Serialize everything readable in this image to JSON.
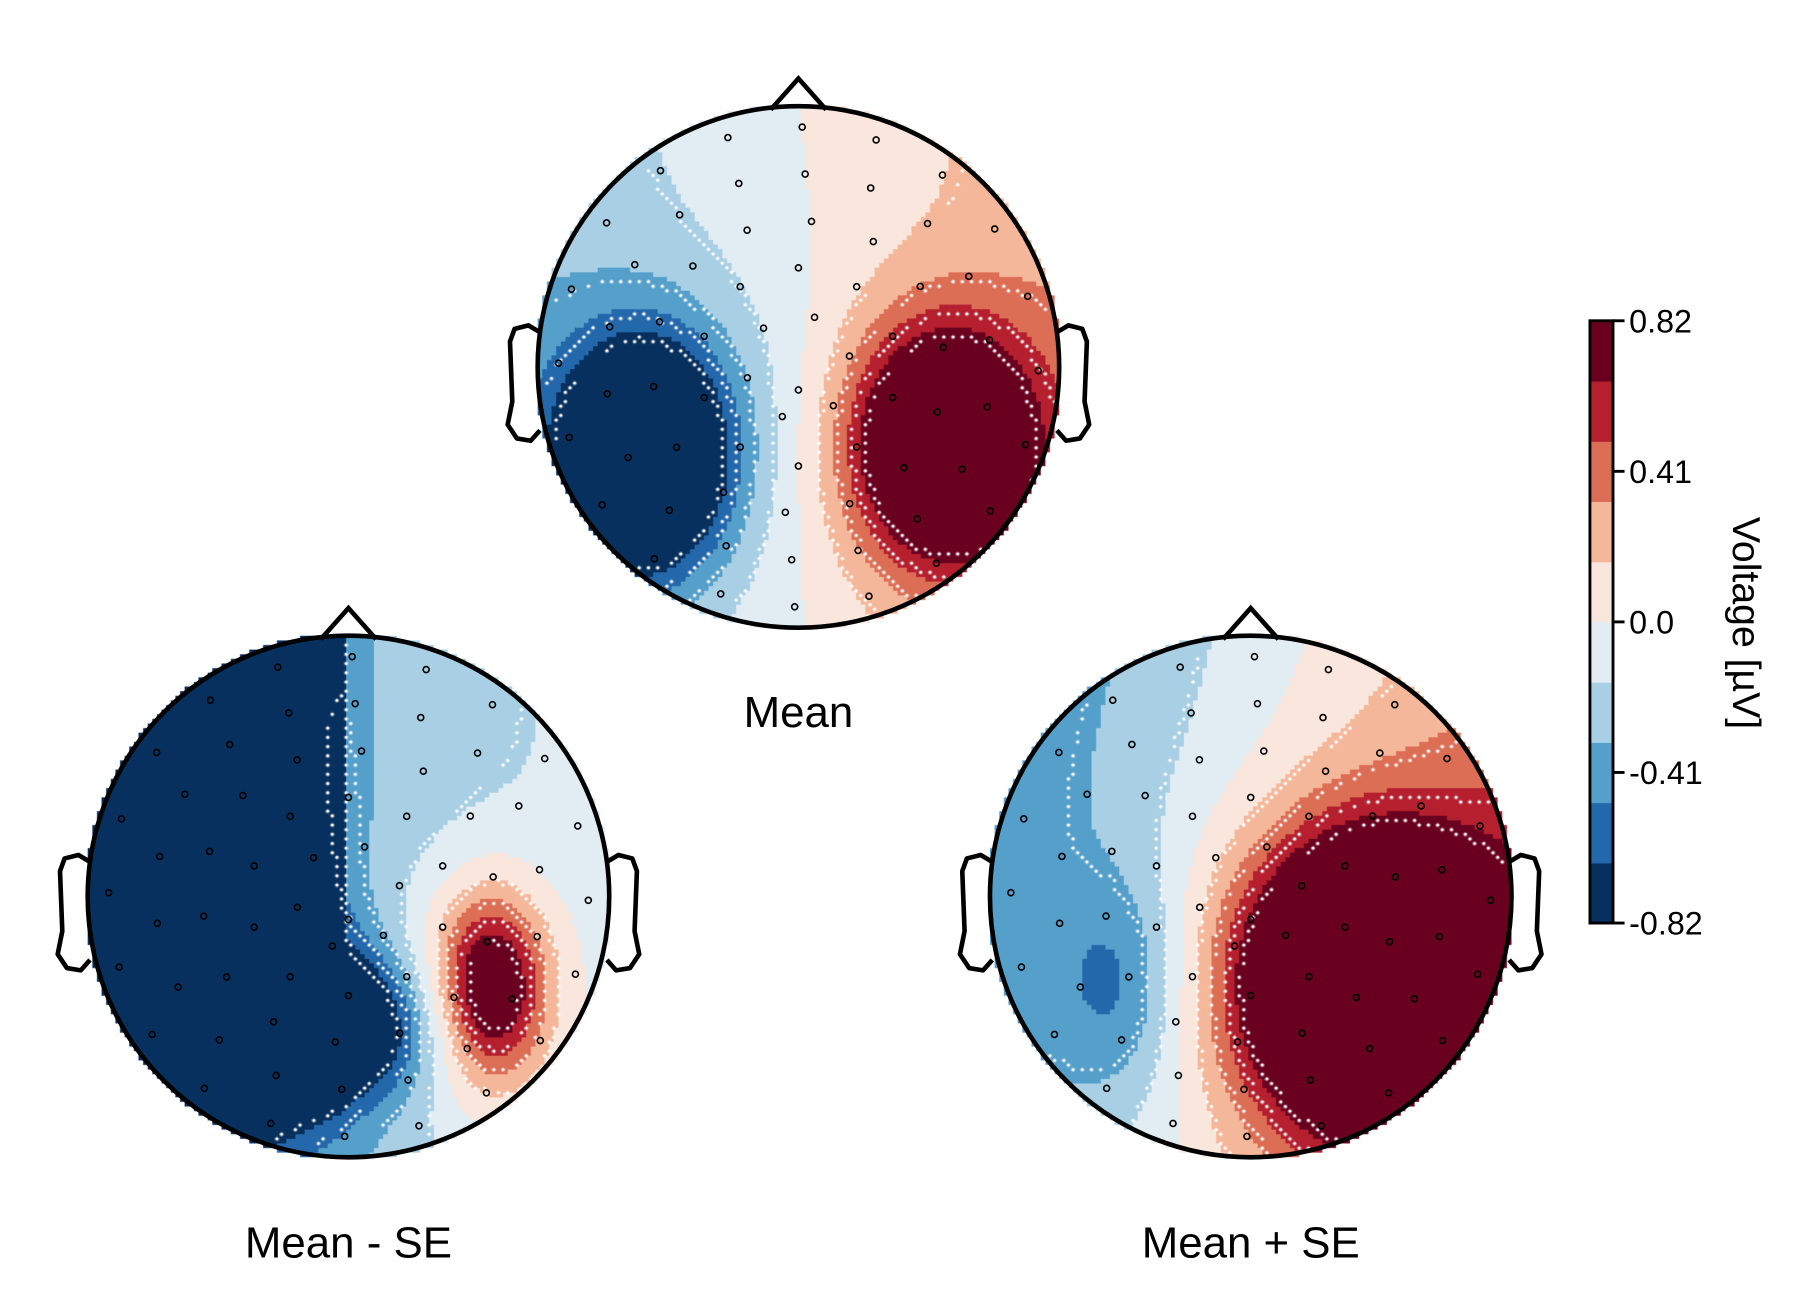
{
  "chart_data": {
    "type": "heatmap",
    "subtype": "eeg-topoplot",
    "panels": [
      {
        "title": "Mean",
        "pattern": "negative left-posterior focus, positive right-posterior focus"
      },
      {
        "title": "Mean - SE",
        "pattern": "broad negative over left hemisphere, weak positive right"
      },
      {
        "title": "Mean + SE",
        "pattern": "broad positive over right hemisphere, weak negative left"
      }
    ],
    "colorbar": {
      "label": "Voltage [µV]",
      "range": [
        -0.82,
        0.82
      ],
      "ticks": [
        "0.82",
        "0.41",
        "0.0",
        "-0.41",
        "-0.82"
      ],
      "levels": 10,
      "colors": [
        "#08305e",
        "#2468ac",
        "#559fcb",
        "#a8cfe3",
        "#e1ecf3",
        "#f9e7de",
        "#f5b799",
        "#dc6e56",
        "#b51f2e",
        "#6a001f"
      ],
      "colormap": "RdBu_r"
    },
    "contours": "white dotted",
    "electrodes": "small black open circles"
  }
}
